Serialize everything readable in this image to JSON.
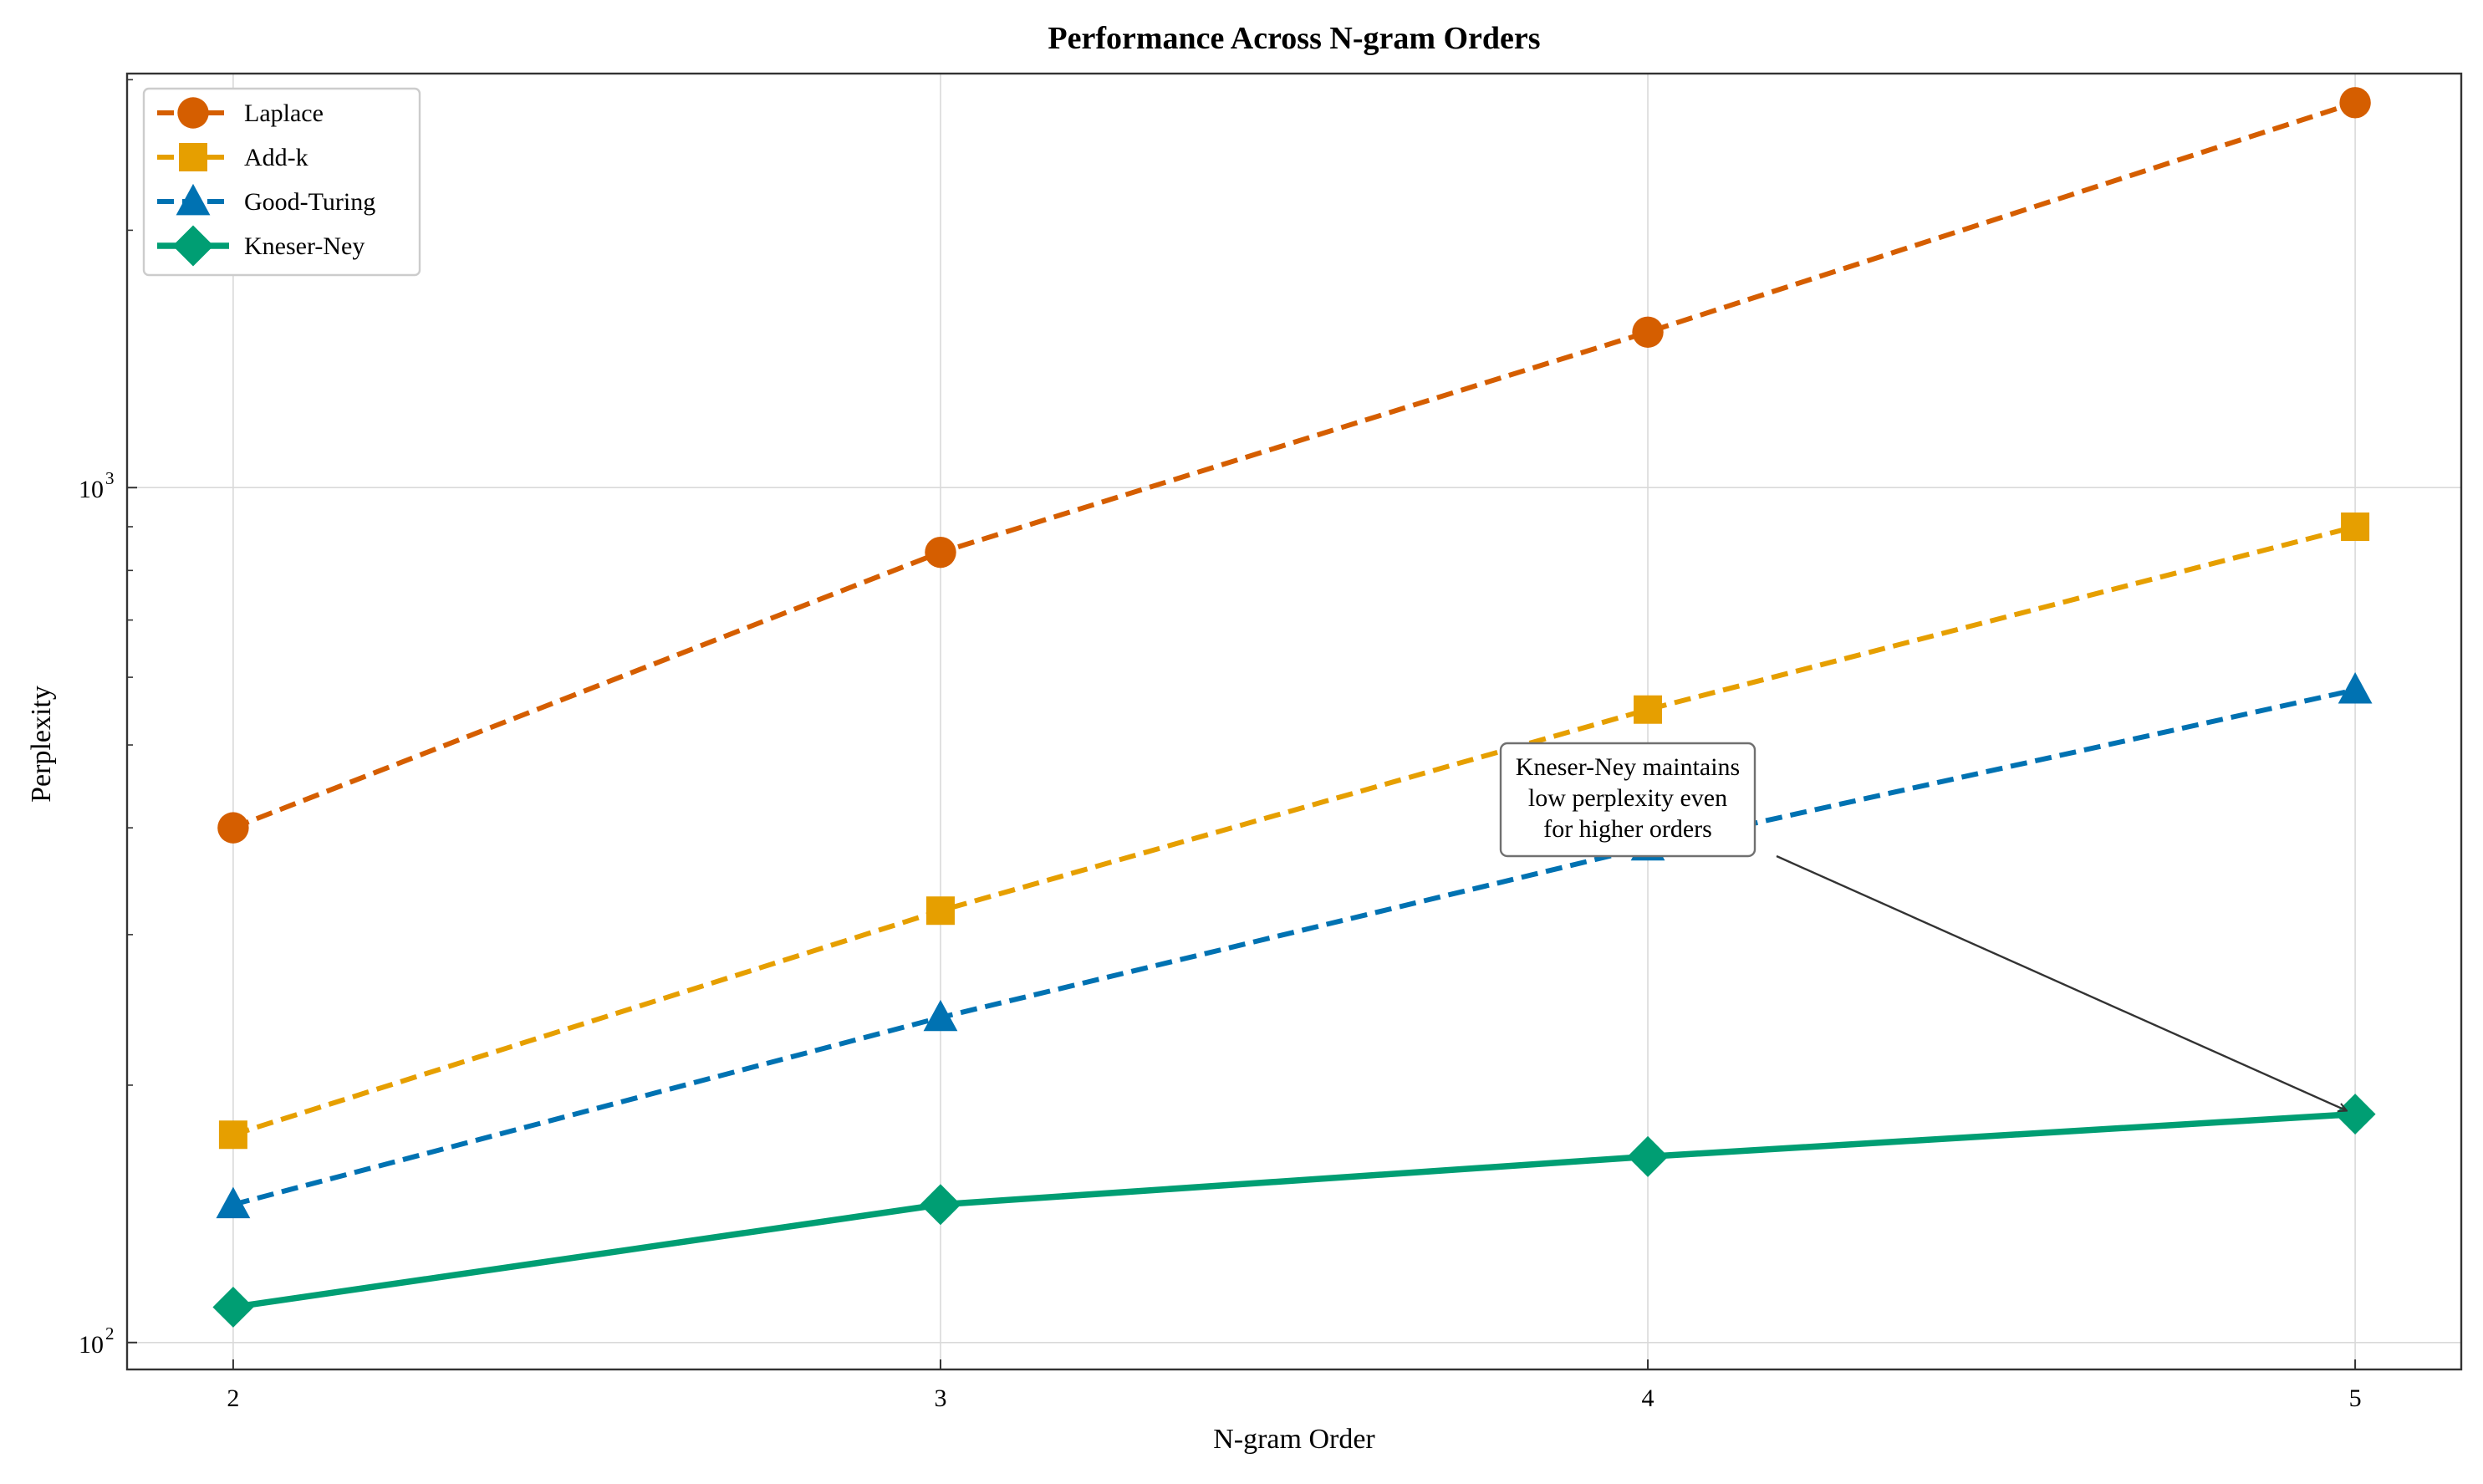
{
  "chart_data": {
    "type": "line",
    "title": "Performance Across N-gram Orders",
    "xlabel": "N-gram Order",
    "ylabel": "Perplexity",
    "yscale": "log",
    "x": [
      2,
      3,
      4,
      5
    ],
    "x_tick_labels": [
      "2",
      "3",
      "4",
      "5"
    ],
    "y_ticks": [
      {
        "value": 100,
        "base": "10",
        "exp": "2"
      },
      {
        "value": 1000,
        "base": "10",
        "exp": "3"
      }
    ],
    "xlim": [
      1.85,
      5.15
    ],
    "ylim": [
      93,
      3050
    ],
    "grid": true,
    "legend_position": "top-left",
    "series": [
      {
        "name": "Laplace",
        "values": [
          400,
          840,
          1520,
          2820
        ],
        "color": "#D55E00",
        "marker": "circle",
        "linestyle": "dashed"
      },
      {
        "name": "Add-k",
        "values": [
          175,
          320,
          550,
          900
        ],
        "color": "#E69F00",
        "marker": "square",
        "linestyle": "dashed"
      },
      {
        "name": "Good-Turing",
        "values": [
          145,
          240,
          380,
          580
        ],
        "color": "#0072B2",
        "marker": "triangle",
        "linestyle": "dashed"
      },
      {
        "name": "Kneser-Ney",
        "values": [
          110,
          145,
          165,
          185
        ],
        "color": "#009E73",
        "marker": "diamond",
        "linestyle": "solid"
      }
    ],
    "annotation": {
      "lines": [
        "Kneser-Ney maintains",
        "low perplexity even",
        "for higher orders"
      ],
      "target_series": "Kneser-Ney",
      "target_x": 5,
      "target_y": 185
    }
  }
}
